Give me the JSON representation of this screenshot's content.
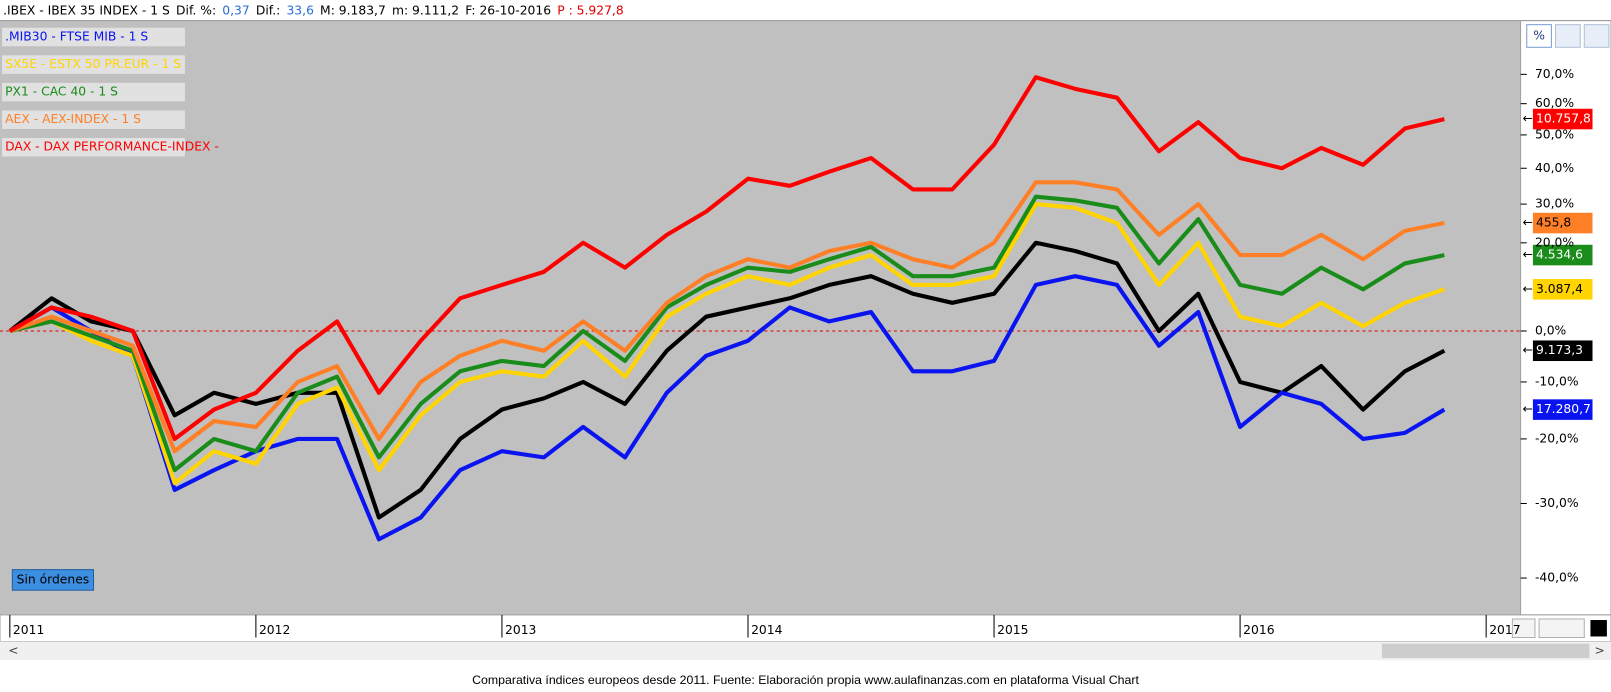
{
  "chart_data": {
    "type": "line",
    "header": [
      {
        "text": "Dif. %:",
        "color": "#000000"
      },
      {
        "text": "0,37",
        "color": "#2a6fd6"
      },
      {
        "text": "Dif.:",
        "color": "#000000"
      },
      {
        "text": "33,6",
        "color": "#2a6fd6"
      },
      {
        "text": "M: 9.183,7",
        "color": "#000000"
      },
      {
        "text": "m: 9.111,2",
        "color": "#000000"
      },
      {
        "text": "F: 26-10-2016",
        "color": "#000000"
      },
      {
        "text": "P : 5.927,8",
        "color": "#e00000"
      }
    ],
    "caption": "Comparativa índices europeos desde 2011. Fuente: Elaboración propia www.aulafinanzas.com en plataforma Visual Chart",
    "button": "Sin órdenes",
    "y_scale": "log",
    "reference_line": 0,
    "xlim": [
      2010.96,
      2017.14
    ],
    "xticks": [
      2011,
      2012,
      2013,
      2014,
      2015,
      2016,
      2017
    ],
    "ylim": [
      -44.4,
      90
    ],
    "yticks": [
      {
        "value": 70,
        "label": "70,0%"
      },
      {
        "value": 60,
        "label": "60,0%"
      },
      {
        "value": 50,
        "label": "50,0%"
      },
      {
        "value": 40,
        "label": "40,0%"
      },
      {
        "value": 30,
        "label": "30,0%"
      },
      {
        "value": 20,
        "label": "20,0%"
      },
      {
        "value": 0,
        "label": "0,0%"
      },
      {
        "value": -10,
        "label": "-10,0%"
      },
      {
        "value": -20,
        "label": "-20,0%"
      },
      {
        "value": -30,
        "label": "-30,0%"
      },
      {
        "value": -40,
        "label": "-40,0%"
      }
    ],
    "x": [
      2011,
      2011.17,
      2011.33,
      2011.5,
      2011.67,
      2011.83,
      2012,
      2012.17,
      2012.33,
      2012.5,
      2012.67,
      2012.83,
      2013,
      2013.17,
      2013.33,
      2013.5,
      2013.67,
      2013.83,
      2014,
      2014.17,
      2014.33,
      2014.5,
      2014.67,
      2014.83,
      2015,
      2015.17,
      2015.33,
      2015.5,
      2015.67,
      2015.83,
      2016,
      2016.17,
      2016.33,
      2016.5,
      2016.67,
      2016.83
    ],
    "series": [
      {
        "name": ".IBEX - IBEX 35 INDEX -  1 S",
        "color": "#000000",
        "end_label": "9.173,3",
        "values": [
          0,
          7,
          2,
          0,
          -16,
          -12,
          -14,
          -12,
          -12,
          -32,
          -28,
          -20,
          -15,
          -13,
          -10,
          -14,
          -4,
          3,
          5,
          7,
          10,
          12,
          8,
          6,
          8,
          20,
          18,
          15,
          0,
          8,
          -10,
          -12,
          -7,
          -15,
          -8,
          -4
        ]
      },
      {
        "name": ".MIB30 - FTSE MIB -  1 S",
        "color": "#0a14f0",
        "end_label": "17.280,7",
        "values": [
          0,
          5,
          0,
          -5,
          -28,
          -25,
          -22,
          -20,
          -20,
          -35,
          -32,
          -25,
          -22,
          -23,
          -18,
          -23,
          -12,
          -5,
          -2,
          5,
          2,
          4,
          -8,
          -8,
          -6,
          10,
          12,
          10,
          -3,
          4,
          -18,
          -12,
          -14,
          -20,
          -19,
          -15
        ]
      },
      {
        "name": "SX5E - ESTX 50 PR.EUR -  1 S",
        "color": "#ffd400",
        "end_label": "3.087,4",
        "values": [
          0,
          2,
          -2,
          -5,
          -27,
          -22,
          -24,
          -14,
          -11,
          -25,
          -16,
          -10,
          -8,
          -9,
          -2,
          -9,
          3,
          8,
          12,
          10,
          14,
          17,
          10,
          10,
          12,
          30,
          29,
          25,
          10,
          20,
          3,
          1,
          6,
          1,
          6,
          9
        ]
      },
      {
        "name": "PX1 - CAC 40 -  1 S",
        "color": "#1a8c1a",
        "end_label": "4.534,6",
        "values": [
          0,
          2,
          -1,
          -4,
          -25,
          -20,
          -22,
          -12,
          -9,
          -23,
          -14,
          -8,
          -6,
          -7,
          0,
          -6,
          5,
          10,
          14,
          13,
          16,
          19,
          12,
          12,
          14,
          32,
          31,
          29,
          15,
          26,
          10,
          8,
          14,
          9,
          15,
          17
        ]
      },
      {
        "name": "AEX - AEX-INDEX -  1 S",
        "color": "#ff7f27",
        "end_label": "455,8",
        "values": [
          0,
          3,
          0,
          -3,
          -22,
          -17,
          -18,
          -10,
          -7,
          -20,
          -10,
          -5,
          -2,
          -4,
          2,
          -4,
          6,
          12,
          16,
          14,
          18,
          20,
          16,
          14,
          20,
          36,
          36,
          34,
          22,
          30,
          17,
          17,
          22,
          16,
          23,
          25
        ]
      },
      {
        "name": "DAX - DAX PERFORMANCE-INDEX -",
        "color": "#ff0000",
        "end_label": "10.757,8",
        "values": [
          0,
          5,
          3,
          0,
          -20,
          -15,
          -12,
          -4,
          2,
          -12,
          -2,
          7,
          10,
          13,
          20,
          14,
          22,
          28,
          37,
          35,
          39,
          43,
          34,
          34,
          47,
          69,
          65,
          62,
          45,
          54,
          43,
          40,
          46,
          41,
          52,
          55
        ]
      }
    ]
  }
}
